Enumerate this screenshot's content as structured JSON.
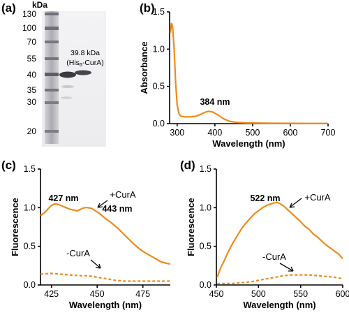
{
  "panels": [
    "(a)",
    "(b)",
    "(c)",
    "(d)"
  ],
  "gel": {
    "unit": "kDa",
    "markers": [
      "130",
      "100",
      "70",
      "55",
      "40",
      "35",
      "30",
      "20"
    ],
    "band_label_1": "39.8 kDa",
    "band_label_2": "(His",
    "band_label_sub": "6",
    "band_label_3": "-CurA)"
  },
  "chart_data": [
    {
      "type": "line",
      "panel": "(b)",
      "xlabel": "Wavelength (nm)",
      "ylabel": "Absorbance",
      "xlim": [
        280,
        700
      ],
      "ylim": [
        0,
        1.5
      ],
      "xticks": [
        300,
        400,
        500,
        600,
        700
      ],
      "yticks": [
        0.0,
        0.5,
        1.0,
        1.5
      ],
      "x": [
        282,
        285,
        288,
        292,
        296,
        300,
        305,
        310,
        320,
        335,
        350,
        365,
        375,
        384,
        395,
        410,
        425,
        440,
        460,
        480,
        500,
        550,
        600,
        650,
        700
      ],
      "y": [
        1.22,
        1.35,
        1.3,
        1.0,
        0.55,
        0.25,
        0.13,
        0.1,
        0.09,
        0.09,
        0.1,
        0.13,
        0.155,
        0.165,
        0.155,
        0.11,
        0.06,
        0.03,
        0.015,
        0.01,
        0.008,
        0.005,
        0.004,
        0.003,
        0.003
      ],
      "annotations": [
        "384 nm"
      ],
      "annotation_positions": [
        [
          384,
          0.165
        ]
      ]
    },
    {
      "type": "line",
      "panel": "(c)",
      "xlabel": "Wavelength (nm)",
      "ylabel": "Fluorescence",
      "xlim": [
        419,
        490
      ],
      "ylim": [
        0,
        1.5
      ],
      "xticks": [
        425,
        450,
        475
      ],
      "yticks": [
        0.0,
        0.5,
        1.0,
        1.5
      ],
      "series": [
        {
          "name": "+CurA",
          "style": "solid",
          "x": [
            419,
            421,
            423,
            425,
            427,
            429,
            431,
            433,
            435,
            437,
            439,
            441,
            443,
            445,
            447,
            449,
            451,
            453,
            455,
            458,
            461,
            464,
            467,
            470,
            473,
            476,
            479,
            482,
            485,
            488,
            490
          ],
          "y": [
            0.9,
            0.93,
            0.98,
            1.03,
            1.05,
            1.04,
            1.02,
            1.0,
            0.98,
            0.97,
            0.96,
            0.98,
            1.0,
            1.0,
            0.99,
            0.96,
            0.93,
            0.89,
            0.85,
            0.8,
            0.74,
            0.67,
            0.6,
            0.53,
            0.47,
            0.42,
            0.38,
            0.34,
            0.3,
            0.28,
            0.27
          ]
        },
        {
          "name": "-CurA",
          "style": "dashed",
          "x": [
            419,
            425,
            430,
            435,
            440,
            445,
            450,
            455,
            460,
            465,
            470,
            475,
            480,
            485,
            490
          ],
          "y": [
            0.14,
            0.15,
            0.14,
            0.13,
            0.12,
            0.12,
            0.1,
            0.08,
            0.06,
            0.05,
            0.05,
            0.05,
            0.05,
            0.05,
            0.05
          ]
        }
      ],
      "annotations": [
        "427 nm",
        "443 nm",
        "+CurA",
        "-CurA"
      ],
      "annotation_positions": [
        [
          427,
          1.05
        ],
        [
          443,
          1.0
        ]
      ]
    },
    {
      "type": "line",
      "panel": "(d)",
      "xlabel": "Wavelength (nm)",
      "ylabel": "Fluorescence",
      "xlim": [
        450,
        600
      ],
      "ylim": [
        0,
        1.5
      ],
      "xticks": [
        450,
        500,
        550,
        600
      ],
      "yticks": [
        0.0,
        0.5,
        1.0,
        1.5
      ],
      "series": [
        {
          "name": "+CurA",
          "style": "solid",
          "x": [
            451,
            455,
            460,
            465,
            470,
            475,
            480,
            485,
            490,
            495,
            500,
            505,
            510,
            515,
            518,
            522,
            526,
            530,
            535,
            540,
            545,
            550,
            555,
            560,
            565,
            570,
            575,
            580,
            585,
            590,
            595,
            600
          ],
          "y": [
            0.1,
            0.22,
            0.33,
            0.45,
            0.55,
            0.64,
            0.73,
            0.8,
            0.86,
            0.92,
            0.96,
            1.0,
            1.03,
            1.05,
            1.06,
            1.07,
            1.05,
            1.02,
            0.97,
            0.92,
            0.87,
            0.82,
            0.76,
            0.72,
            0.66,
            0.62,
            0.57,
            0.52,
            0.48,
            0.44,
            0.4,
            0.34
          ]
        },
        {
          "name": "-CurA",
          "style": "dashed",
          "x": [
            451,
            460,
            470,
            480,
            490,
            500,
            510,
            520,
            530,
            540,
            550,
            560,
            570,
            580,
            590,
            600
          ],
          "y": [
            0.02,
            0.02,
            0.02,
            0.03,
            0.04,
            0.06,
            0.08,
            0.1,
            0.12,
            0.13,
            0.13,
            0.13,
            0.12,
            0.11,
            0.1,
            0.08
          ]
        }
      ],
      "annotations": [
        "522 nm",
        "+CurA",
        "-CurA"
      ],
      "annotation_positions": [
        [
          522,
          1.07
        ]
      ]
    }
  ]
}
